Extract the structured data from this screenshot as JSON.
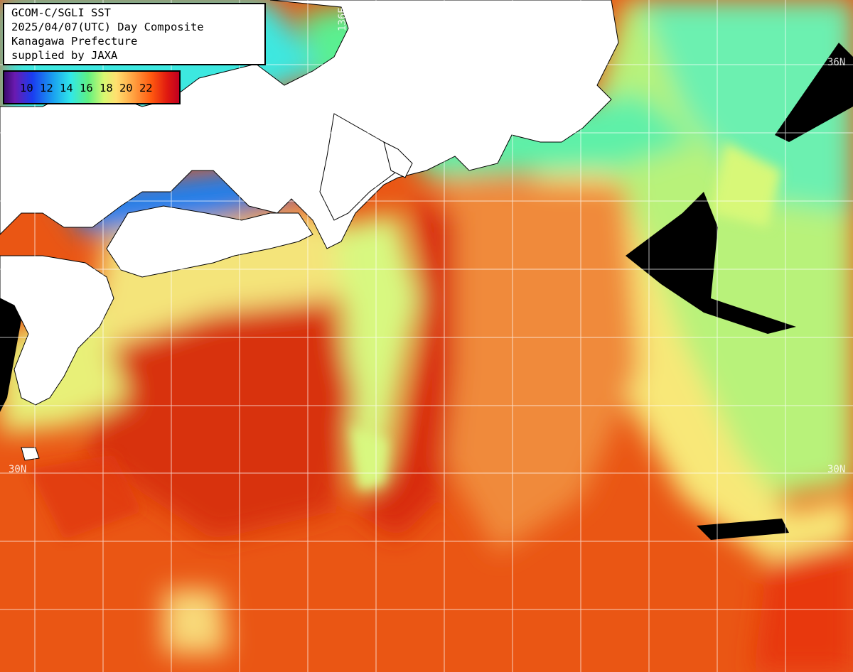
{
  "title": {
    "line1": "GCOM-C/SGLI SST",
    "line2": "2025/04/07(UTC) Day Composite",
    "line3": "Kanagawa Prefecture",
    "line4": "supplied by JAXA"
  },
  "legend": {
    "ticks": "10 12 14 16 18 20 22"
  },
  "grid_labels": {
    "lon_136e": "136E",
    "lat_36n": "36N",
    "lat_30n_left": "30N",
    "lat_30n_right": "30N"
  },
  "colors": {
    "land": "#ffffff",
    "cloud": "#000000",
    "grid": "#ffffff",
    "warm_sea": "#e84a10",
    "kuroshio_core": "#d8300a",
    "cool_coastal": "#3ee0c0",
    "cold_bay": "#1a8cf0"
  }
}
